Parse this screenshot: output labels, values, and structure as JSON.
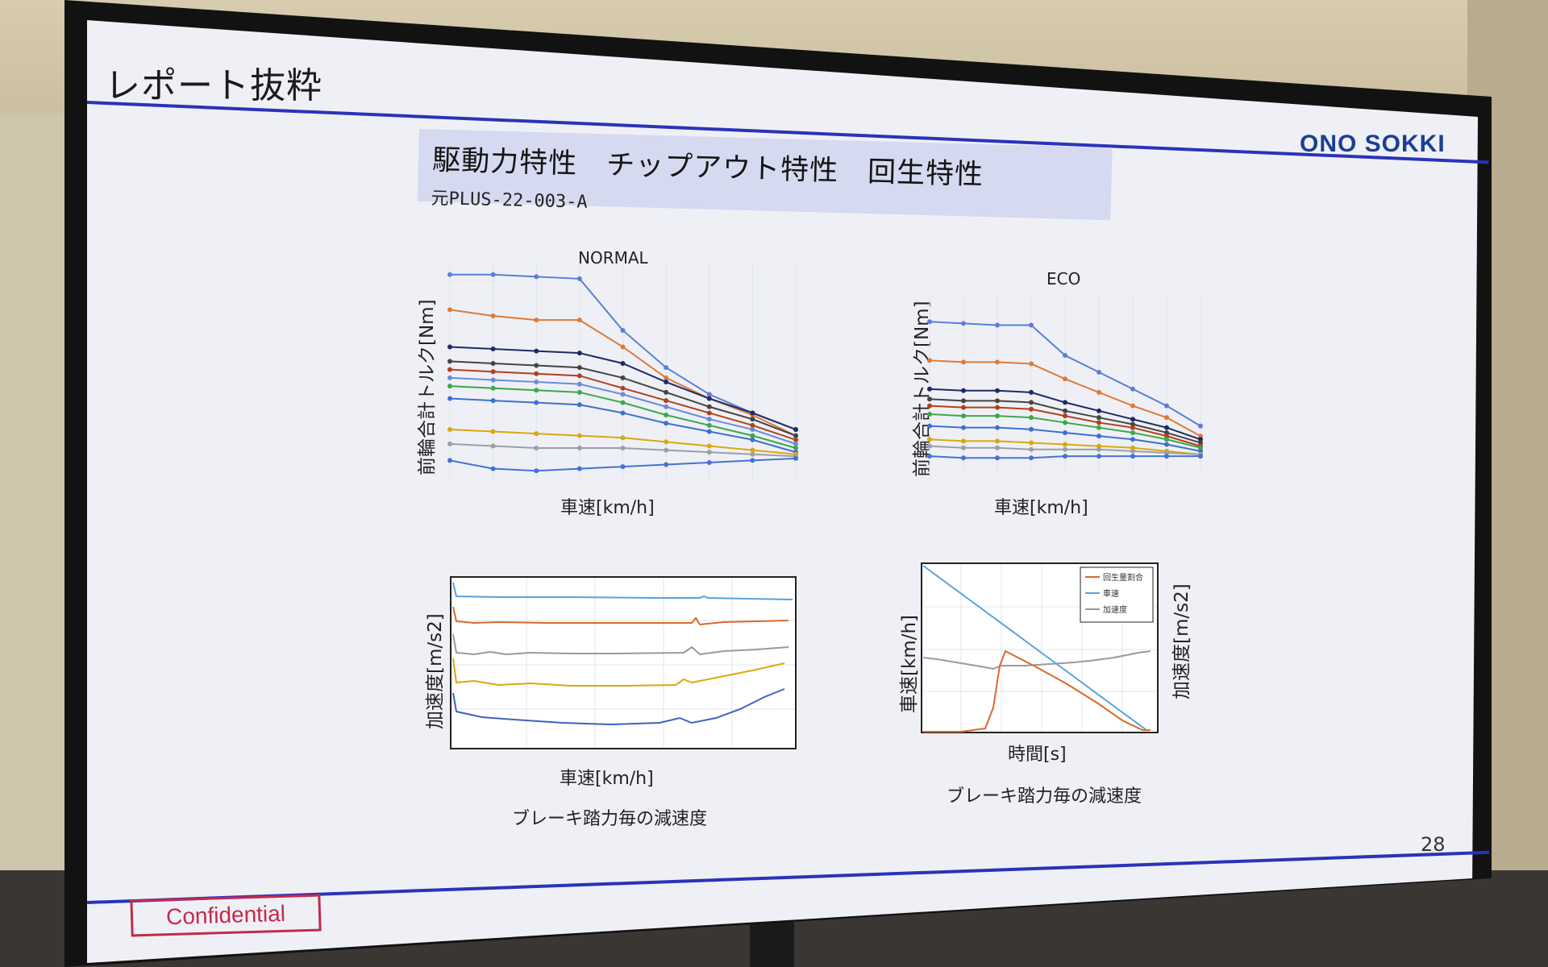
{
  "slide": {
    "title": "レポート抜粋",
    "logo": "ONO SOKKI",
    "header": "駆動力特性　チップアウト特性　回生特性",
    "doc_id": "元PLUS-22-003-A",
    "page_number": "28",
    "confidential": "Confidential"
  },
  "colors": {
    "accent_rule": "#2b33b8",
    "logo": "#1c3f94",
    "confidential": "#c42a4a"
  },
  "charts": {
    "normal": {
      "title": "NORMAL",
      "ylabel": "前輪合計トルク[Nm]",
      "xlabel": "車速[km/h]"
    },
    "eco": {
      "title": "ECO",
      "ylabel": "前輪合計トルク[Nm]",
      "xlabel": "車速[km/h]"
    },
    "brake": {
      "ylabel": "加速度[m/s2]",
      "xlabel": "車速[km/h]",
      "caption": "ブレーキ踏力毎の減速度"
    },
    "regen": {
      "ylabel_left": "車速[km/h]",
      "ylabel_right": "加速度[m/s2]",
      "xlabel": "時間[s]",
      "caption": "ブレーキ踏力毎の減速度",
      "legend": [
        "回生量割合",
        "車速",
        "加速度"
      ]
    }
  },
  "chart_data": [
    {
      "type": "line",
      "title": "NORMAL",
      "ylabel": "前輪合計トルク[Nm]",
      "xlabel": "車速[km/h]",
      "x": [
        0,
        1,
        2,
        3,
        4,
        5,
        6,
        7,
        8
      ],
      "series": [
        {
          "color": "#5b7fd6",
          "values": [
            100,
            100,
            99,
            98,
            73,
            55,
            42,
            33,
            25
          ]
        },
        {
          "color": "#e07a35",
          "values": [
            83,
            80,
            78,
            78,
            65,
            50,
            40,
            32,
            22
          ]
        },
        {
          "color": "#1f2a66",
          "values": [
            65,
            64,
            63,
            62,
            57,
            48,
            40,
            33,
            25
          ]
        },
        {
          "color": "#444444",
          "values": [
            58,
            57,
            56,
            55,
            50,
            43,
            36,
            30,
            22
          ]
        },
        {
          "color": "#b3401b",
          "values": [
            54,
            53,
            52,
            51,
            45,
            39,
            33,
            27,
            20
          ]
        },
        {
          "color": "#6b8bd9",
          "values": [
            50,
            49,
            48,
            47,
            42,
            36,
            30,
            25,
            18
          ]
        },
        {
          "color": "#3ba84a",
          "values": [
            46,
            45,
            44,
            43,
            38,
            32,
            27,
            22,
            16
          ]
        },
        {
          "color": "#3f6fd1",
          "values": [
            40,
            39,
            38,
            37,
            33,
            28,
            24,
            20,
            14
          ]
        },
        {
          "color": "#d9a90c",
          "values": [
            25,
            24,
            23,
            22,
            21,
            19,
            17,
            15,
            13
          ]
        },
        {
          "color": "#9aa0a8",
          "values": [
            18,
            17,
            16,
            16,
            16,
            15,
            14,
            13,
            12
          ]
        },
        {
          "color": "#4672d4",
          "values": [
            10,
            6,
            5,
            6,
            7,
            8,
            9,
            10,
            11
          ]
        }
      ]
    },
    {
      "type": "line",
      "title": "ECO",
      "ylabel": "前輪合計トルク[Nm]",
      "xlabel": "車速[km/h]",
      "x": [
        0,
        1,
        2,
        3,
        4,
        5,
        6,
        7,
        8
      ],
      "series": [
        {
          "color": "#5b7fd6",
          "values": [
            90,
            89,
            88,
            88,
            70,
            60,
            50,
            40,
            28
          ]
        },
        {
          "color": "#e07a35",
          "values": [
            67,
            66,
            66,
            65,
            56,
            48,
            40,
            33,
            22
          ]
        },
        {
          "color": "#1f2a66",
          "values": [
            50,
            49,
            49,
            48,
            42,
            37,
            32,
            27,
            20
          ]
        },
        {
          "color": "#444444",
          "values": [
            44,
            43,
            43,
            42,
            37,
            33,
            29,
            24,
            18
          ]
        },
        {
          "color": "#b3401b",
          "values": [
            40,
            39,
            39,
            38,
            34,
            30,
            27,
            22,
            16
          ]
        },
        {
          "color": "#3ba84a",
          "values": [
            35,
            34,
            34,
            33,
            30,
            27,
            24,
            20,
            15
          ]
        },
        {
          "color": "#3f6fd1",
          "values": [
            28,
            27,
            27,
            26,
            24,
            22,
            20,
            17,
            13
          ]
        },
        {
          "color": "#d9a90c",
          "values": [
            20,
            19,
            19,
            18,
            17,
            16,
            15,
            13,
            11
          ]
        },
        {
          "color": "#9aa0a8",
          "values": [
            16,
            15,
            15,
            14,
            14,
            14,
            13,
            12,
            11
          ]
        },
        {
          "color": "#4672d4",
          "values": [
            10,
            9,
            9,
            9,
            10,
            10,
            10,
            10,
            10
          ]
        }
      ]
    }
  ]
}
